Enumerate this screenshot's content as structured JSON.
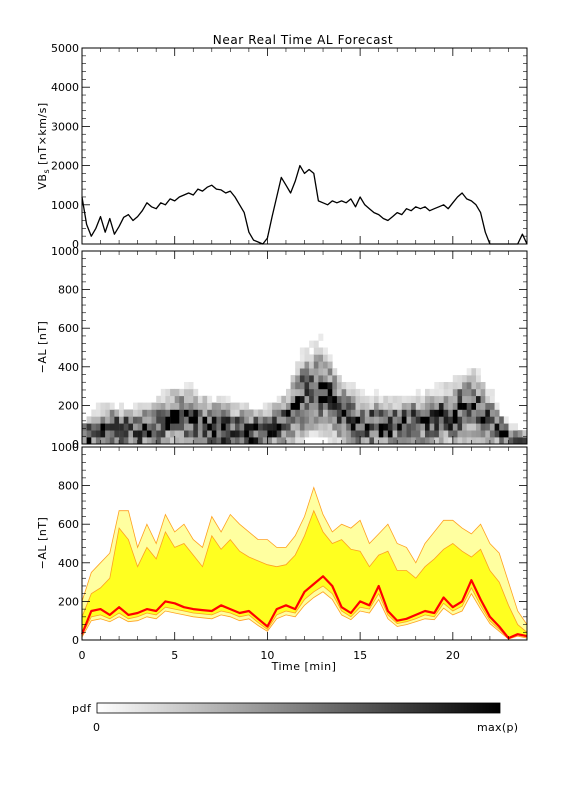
{
  "title": "Near Real Time AL Forecast",
  "colors": {
    "line": "#000000",
    "median": "#ff0000",
    "band_outer": "#ffffa0",
    "band_inner": "#ffff20",
    "band_edge": "#ffa020",
    "pdf_max": "#000000",
    "pdf_min": "#ffffff"
  },
  "colorbar": {
    "label": "pdf",
    "min_label": "0",
    "max_label": "max(p)"
  },
  "chart_data": [
    {
      "type": "line",
      "ylabel": "VB_s [nT×km/s]",
      "ylabel_main": "VB",
      "ylabel_sub": "s",
      "ylabel_rest": " [nT×km/s]",
      "xlim": [
        0,
        24
      ],
      "ylim": [
        0,
        5000
      ],
      "yticks": [
        "0",
        "1000",
        "2000",
        "3000",
        "4000",
        "5000"
      ],
      "series": [
        {
          "x": [
            0,
            0.25,
            0.5,
            0.75,
            1,
            1.25,
            1.5,
            1.75,
            2,
            2.25,
            2.5,
            2.75,
            3,
            3.25,
            3.5,
            3.75,
            4,
            4.25,
            4.5,
            4.75,
            5,
            5.25,
            5.5,
            5.75,
            6,
            6.25,
            6.5,
            6.75,
            7,
            7.25,
            7.5,
            7.75,
            8,
            8.25,
            8.5,
            8.75,
            9,
            9.25,
            9.5,
            9.75,
            10,
            10.25,
            10.5,
            10.75,
            11,
            11.25,
            11.5,
            11.75,
            12,
            12.25,
            12.5,
            12.75,
            13,
            13.25,
            13.5,
            13.75,
            14,
            14.25,
            14.5,
            14.75,
            15,
            15.25,
            15.5,
            15.75,
            16,
            16.25,
            16.5,
            16.75,
            17,
            17.25,
            17.5,
            17.75,
            18,
            18.25,
            18.5,
            18.75,
            19,
            19.25,
            19.5,
            19.75,
            20,
            20.25,
            20.5,
            20.75,
            21,
            21.25,
            21.5,
            21.75,
            22,
            22.25,
            22.5,
            22.75,
            23,
            23.25,
            23.5,
            23.75,
            24
          ],
          "values": [
            1200,
            500,
            200,
            400,
            700,
            300,
            650,
            250,
            450,
            680,
            750,
            600,
            700,
            850,
            1050,
            950,
            900,
            1050,
            1000,
            1150,
            1100,
            1200,
            1250,
            1300,
            1250,
            1400,
            1350,
            1450,
            1500,
            1400,
            1380,
            1300,
            1350,
            1200,
            1000,
            800,
            300,
            100,
            50,
            0,
            150,
            700,
            1200,
            1700,
            1500,
            1300,
            1600,
            2000,
            1800,
            1900,
            1800,
            1100,
            1050,
            1000,
            1100,
            1050,
            1100,
            1050,
            1150,
            950,
            1200,
            1000,
            900,
            800,
            750,
            650,
            600,
            700,
            800,
            750,
            900,
            850,
            950,
            900,
            950,
            850,
            900,
            950,
            1000,
            900,
            1050,
            1200,
            1300,
            1150,
            1100,
            1000,
            800,
            300,
            0,
            0,
            0,
            0,
            0,
            0,
            0,
            250,
            0
          ]
        }
      ]
    },
    {
      "type": "heatmap",
      "ylabel": "−AL [nT]",
      "xlim": [
        0,
        24
      ],
      "ylim": [
        0,
        1000
      ],
      "yticks": [
        "0",
        "200",
        "400",
        "600",
        "800",
        "1000"
      ],
      "x": [
        0,
        1,
        2,
        3,
        4,
        5,
        6,
        7,
        8,
        9,
        10,
        11,
        12,
        13,
        14,
        15,
        16,
        17,
        18,
        19,
        20,
        21,
        22,
        23,
        24
      ],
      "center": [
        20,
        80,
        70,
        60,
        90,
        140,
        130,
        90,
        70,
        60,
        70,
        120,
        250,
        280,
        160,
        100,
        90,
        100,
        110,
        120,
        150,
        200,
        120,
        40,
        30
      ],
      "spread": [
        120,
        150,
        180,
        170,
        180,
        200,
        200,
        190,
        200,
        180,
        150,
        200,
        300,
        320,
        220,
        210,
        200,
        180,
        190,
        200,
        230,
        260,
        200,
        80,
        40
      ]
    },
    {
      "type": "area",
      "ylabel": "−AL [nT]",
      "xlabel": "Time [min]",
      "xlim": [
        0,
        24
      ],
      "ylim": [
        0,
        1000
      ],
      "xticks": [
        "0",
        "5",
        "10",
        "15",
        "20"
      ],
      "xtick_values": [
        0,
        5,
        10,
        15,
        20
      ],
      "yticks": [
        "0",
        "200",
        "400",
        "600",
        "800",
        "1000"
      ],
      "x": [
        0,
        0.5,
        1,
        1.5,
        2,
        2.5,
        3,
        3.5,
        4,
        4.5,
        5,
        5.5,
        6,
        6.5,
        7,
        7.5,
        8,
        8.5,
        9,
        9.5,
        10,
        10.5,
        11,
        11.5,
        12,
        12.5,
        13,
        13.5,
        14,
        14.5,
        15,
        15.5,
        16,
        16.5,
        17,
        17.5,
        18,
        18.5,
        19,
        19.5,
        20,
        20.5,
        21,
        21.5,
        22,
        22.5,
        23,
        23.5,
        24
      ],
      "series": [
        {
          "name": "outer_upper",
          "values": [
            200,
            350,
            400,
            450,
            670,
            670,
            480,
            600,
            500,
            650,
            560,
            600,
            520,
            480,
            640,
            560,
            650,
            600,
            560,
            520,
            520,
            480,
            480,
            540,
            640,
            790,
            650,
            560,
            600,
            580,
            620,
            500,
            550,
            600,
            500,
            480,
            400,
            500,
            560,
            620,
            620,
            580,
            550,
            600,
            500,
            450,
            300,
            150,
            80
          ]
        },
        {
          "name": "inner_upper",
          "values": [
            120,
            240,
            270,
            320,
            580,
            520,
            380,
            480,
            420,
            560,
            480,
            500,
            440,
            380,
            540,
            470,
            520,
            460,
            430,
            410,
            390,
            380,
            390,
            440,
            540,
            670,
            560,
            500,
            520,
            470,
            460,
            380,
            440,
            460,
            360,
            360,
            320,
            380,
            420,
            470,
            500,
            460,
            430,
            470,
            360,
            300,
            180,
            80,
            40
          ]
        },
        {
          "name": "median",
          "values": [
            30,
            150,
            160,
            130,
            170,
            130,
            140,
            160,
            150,
            200,
            190,
            170,
            160,
            155,
            150,
            180,
            160,
            140,
            150,
            110,
            70,
            160,
            180,
            160,
            250,
            290,
            330,
            280,
            170,
            140,
            200,
            180,
            280,
            150,
            100,
            110,
            130,
            150,
            140,
            220,
            170,
            200,
            310,
            210,
            120,
            70,
            10,
            30,
            20
          ]
        },
        {
          "name": "inner_lower",
          "values": [
            25,
            120,
            130,
            110,
            140,
            110,
            120,
            140,
            130,
            170,
            160,
            150,
            140,
            135,
            130,
            150,
            140,
            120,
            130,
            90,
            55,
            130,
            150,
            140,
            210,
            250,
            280,
            240,
            150,
            120,
            170,
            160,
            240,
            130,
            85,
            95,
            110,
            130,
            120,
            190,
            150,
            175,
            270,
            180,
            100,
            55,
            8,
            25,
            15
          ]
        },
        {
          "name": "outer_lower",
          "values": [
            15,
            100,
            110,
            95,
            120,
            95,
            100,
            120,
            110,
            150,
            140,
            130,
            120,
            115,
            110,
            130,
            120,
            100,
            110,
            75,
            45,
            110,
            130,
            120,
            180,
            220,
            250,
            210,
            130,
            105,
            150,
            140,
            210,
            110,
            70,
            80,
            95,
            110,
            105,
            165,
            130,
            150,
            240,
            160,
            85,
            45,
            5,
            20,
            10
          ]
        }
      ]
    }
  ]
}
